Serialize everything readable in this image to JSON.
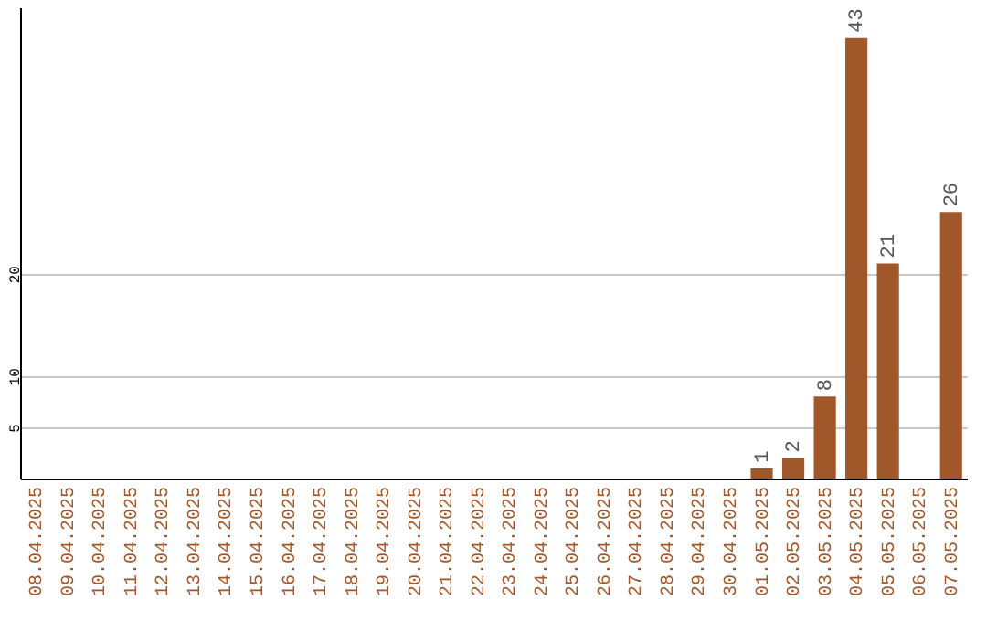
{
  "chart_data": {
    "type": "bar",
    "categories": [
      "08.04.2025",
      "09.04.2025",
      "10.04.2025",
      "11.04.2025",
      "12.04.2025",
      "13.04.2025",
      "14.04.2025",
      "15.04.2025",
      "16.04.2025",
      "17.04.2025",
      "18.04.2025",
      "19.04.2025",
      "20.04.2025",
      "21.04.2025",
      "22.04.2025",
      "23.04.2025",
      "24.04.2025",
      "25.04.2025",
      "26.04.2025",
      "27.04.2025",
      "28.04.2025",
      "29.04.2025",
      "30.04.2025",
      "01.05.2025",
      "02.05.2025",
      "03.05.2025",
      "04.05.2025",
      "05.05.2025",
      "06.05.2025",
      "07.05.2025"
    ],
    "values": [
      0,
      0,
      0,
      0,
      0,
      0,
      0,
      0,
      0,
      0,
      0,
      0,
      0,
      0,
      0,
      0,
      0,
      0,
      0,
      0,
      0,
      0,
      0,
      1,
      2,
      8,
      43,
      21,
      0,
      26
    ],
    "value_labels": [
      null,
      null,
      null,
      null,
      null,
      null,
      null,
      null,
      null,
      null,
      null,
      null,
      null,
      null,
      null,
      null,
      null,
      null,
      null,
      null,
      null,
      null,
      null,
      "1",
      "2",
      "8",
      "43",
      "21",
      null,
      "26"
    ],
    "color": "#a0572a",
    "ylim": [
      0,
      46
    ],
    "yticks": [
      5,
      10,
      20
    ],
    "grid": "y"
  }
}
